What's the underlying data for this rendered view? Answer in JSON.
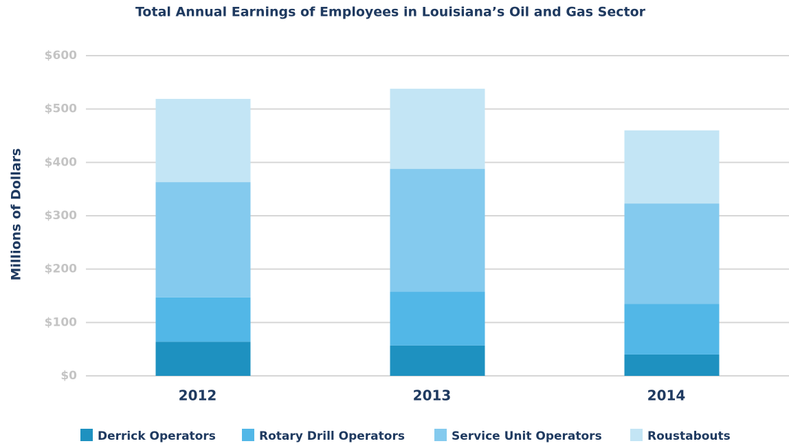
{
  "chart_data": {
    "type": "stacked_bar",
    "title": "Total Annual Earnings of Employees in Louisiana’s Oil and Gas Sector",
    "y_label": "Millions of Dollars",
    "categories": [
      "2012",
      "2013",
      "2014"
    ],
    "series": [
      {
        "name": "Derrick Operators",
        "color": "#1e91c0",
        "values": [
          64,
          57,
          40
        ]
      },
      {
        "name": "Rotary Drill Operators",
        "color": "#52b7e7",
        "values": [
          83,
          101,
          95
        ]
      },
      {
        "name": "Service Unit Operators",
        "color": "#84caee",
        "values": [
          216,
          230,
          188
        ]
      },
      {
        "name": "Roustabouts",
        "color": "#c3e5f5",
        "values": [
          156,
          150,
          137
        ]
      }
    ],
    "ylim": [
      0,
      600
    ],
    "yticks": [
      {
        "value": 0,
        "label": "$0"
      },
      {
        "value": 100,
        "label": "$100"
      },
      {
        "value": 200,
        "label": "$200"
      },
      {
        "value": 300,
        "label": "$300"
      },
      {
        "value": 400,
        "label": "$400"
      },
      {
        "value": 500,
        "label": "$500"
      },
      {
        "value": 600,
        "label": "$600"
      }
    ],
    "grid": true,
    "legend": "bottom"
  }
}
